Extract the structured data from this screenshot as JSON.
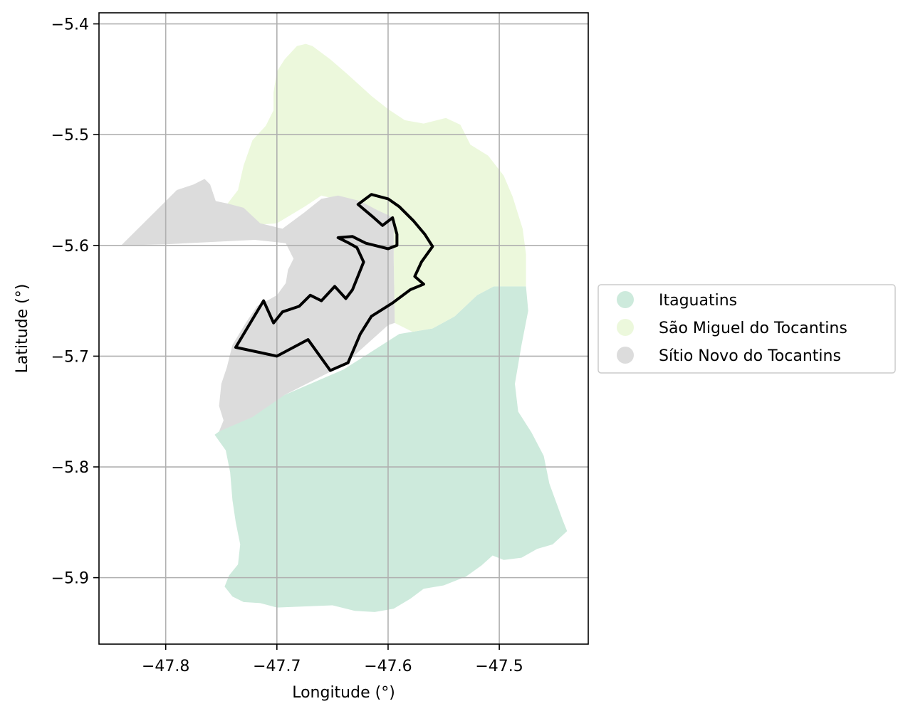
{
  "chart_data": {
    "type": "map",
    "xlabel": "Longitude (°)",
    "ylabel": "Latitude (°)",
    "xlim": [
      -47.86,
      -47.42
    ],
    "ylim": [
      -5.96,
      -5.39
    ],
    "grid": true,
    "x_ticks": [
      {
        "value": -47.8,
        "label": "−47.8"
      },
      {
        "value": -47.7,
        "label": "−47.7"
      },
      {
        "value": -47.6,
        "label": "−47.6"
      },
      {
        "value": -47.5,
        "label": "−47.5"
      }
    ],
    "y_ticks": [
      {
        "value": -5.4,
        "label": "−5.4"
      },
      {
        "value": -5.5,
        "label": "−5.5"
      },
      {
        "value": -5.6,
        "label": "−5.6"
      },
      {
        "value": -5.7,
        "label": "−5.7"
      },
      {
        "value": -5.8,
        "label": "−5.8"
      },
      {
        "value": -5.9,
        "label": "−5.9"
      }
    ],
    "legend_position": "right",
    "regions": [
      {
        "key": "itaguatins",
        "name": "Itaguatins",
        "color": "#cdeadc",
        "coords": [
          [
            -47.752,
            -5.768
          ],
          [
            -47.693,
            -5.735
          ],
          [
            -47.64,
            -5.712
          ],
          [
            -47.59,
            -5.68
          ],
          [
            -47.56,
            -5.675
          ],
          [
            -47.54,
            -5.664
          ],
          [
            -47.52,
            -5.645
          ],
          [
            -47.505,
            -5.637
          ],
          [
            -47.476,
            -5.637
          ],
          [
            -47.474,
            -5.659
          ],
          [
            -47.48,
            -5.69
          ],
          [
            -47.486,
            -5.725
          ],
          [
            -47.483,
            -5.75
          ],
          [
            -47.471,
            -5.769
          ],
          [
            -47.46,
            -5.79
          ],
          [
            -47.455,
            -5.815
          ],
          [
            -47.443,
            -5.848
          ],
          [
            -47.439,
            -5.858
          ],
          [
            -47.452,
            -5.87
          ],
          [
            -47.466,
            -5.874
          ],
          [
            -47.48,
            -5.882
          ],
          [
            -47.496,
            -5.884
          ],
          [
            -47.506,
            -5.88
          ],
          [
            -47.516,
            -5.889
          ],
          [
            -47.53,
            -5.899
          ],
          [
            -47.55,
            -5.907
          ],
          [
            -47.568,
            -5.91
          ],
          [
            -47.58,
            -5.919
          ],
          [
            -47.595,
            -5.928
          ],
          [
            -47.612,
            -5.931
          ],
          [
            -47.63,
            -5.93
          ],
          [
            -47.65,
            -5.925
          ],
          [
            -47.7,
            -5.927
          ],
          [
            -47.715,
            -5.923
          ],
          [
            -47.73,
            -5.922
          ],
          [
            -47.74,
            -5.917
          ],
          [
            -47.747,
            -5.908
          ],
          [
            -47.743,
            -5.898
          ],
          [
            -47.735,
            -5.888
          ],
          [
            -47.733,
            -5.87
          ],
          [
            -47.737,
            -5.85
          ],
          [
            -47.74,
            -5.83
          ],
          [
            -47.742,
            -5.805
          ],
          [
            -47.746,
            -5.785
          ],
          [
            -47.756,
            -5.771
          ]
        ]
      },
      {
        "key": "sao_miguel",
        "name": "São Miguel do Tocantins",
        "color": "#ecf8dc",
        "coords": [
          [
            -47.752,
            -5.574
          ],
          [
            -47.745,
            -5.563
          ],
          [
            -47.735,
            -5.55
          ],
          [
            -47.73,
            -5.528
          ],
          [
            -47.722,
            -5.505
          ],
          [
            -47.71,
            -5.492
          ],
          [
            -47.703,
            -5.478
          ],
          [
            -47.703,
            -5.462
          ],
          [
            -47.7,
            -5.443
          ],
          [
            -47.693,
            -5.432
          ],
          [
            -47.682,
            -5.42
          ],
          [
            -47.674,
            -5.418
          ],
          [
            -47.668,
            -5.42
          ],
          [
            -47.652,
            -5.432
          ],
          [
            -47.637,
            -5.445
          ],
          [
            -47.615,
            -5.465
          ],
          [
            -47.6,
            -5.477
          ],
          [
            -47.585,
            -5.487
          ],
          [
            -47.568,
            -5.49
          ],
          [
            -47.548,
            -5.485
          ],
          [
            -47.535,
            -5.491
          ],
          [
            -47.526,
            -5.509
          ],
          [
            -47.51,
            -5.519
          ],
          [
            -47.496,
            -5.537
          ],
          [
            -47.488,
            -5.556
          ],
          [
            -47.479,
            -5.585
          ],
          [
            -47.476,
            -5.608
          ],
          [
            -47.476,
            -5.637
          ],
          [
            -47.505,
            -5.637
          ],
          [
            -47.52,
            -5.645
          ],
          [
            -47.54,
            -5.664
          ],
          [
            -47.56,
            -5.675
          ],
          [
            -47.578,
            -5.678
          ],
          [
            -47.594,
            -5.67
          ],
          [
            -47.595,
            -5.612
          ],
          [
            -47.595,
            -5.575
          ],
          [
            -47.62,
            -5.568
          ],
          [
            -47.64,
            -5.56
          ],
          [
            -47.66,
            -5.555
          ],
          [
            -47.675,
            -5.565
          ],
          [
            -47.7,
            -5.58
          ],
          [
            -47.725,
            -5.582
          ],
          [
            -47.74,
            -5.58
          ]
        ]
      },
      {
        "key": "sitio_novo",
        "name": "Sítio Novo do Tocantins",
        "color": "#dcdcdc",
        "coords": [
          [
            -47.84,
            -5.6
          ],
          [
            -47.81,
            -5.57
          ],
          [
            -47.79,
            -5.55
          ],
          [
            -47.775,
            -5.545
          ],
          [
            -47.765,
            -5.54
          ],
          [
            -47.76,
            -5.545
          ],
          [
            -47.755,
            -5.56
          ],
          [
            -47.745,
            -5.562
          ],
          [
            -47.73,
            -5.566
          ],
          [
            -47.715,
            -5.58
          ],
          [
            -47.695,
            -5.585
          ],
          [
            -47.675,
            -5.57
          ],
          [
            -47.66,
            -5.558
          ],
          [
            -47.645,
            -5.555
          ],
          [
            -47.625,
            -5.56
          ],
          [
            -47.61,
            -5.568
          ],
          [
            -47.595,
            -5.575
          ],
          [
            -47.595,
            -5.612
          ],
          [
            -47.594,
            -5.67
          ],
          [
            -47.6,
            -5.672
          ],
          [
            -47.64,
            -5.708
          ],
          [
            -47.693,
            -5.735
          ],
          [
            -47.722,
            -5.755
          ],
          [
            -47.752,
            -5.768
          ],
          [
            -47.748,
            -5.758
          ],
          [
            -47.752,
            -5.745
          ],
          [
            -47.75,
            -5.725
          ],
          [
            -47.745,
            -5.71
          ],
          [
            -47.74,
            -5.69
          ],
          [
            -47.728,
            -5.67
          ],
          [
            -47.718,
            -5.655
          ],
          [
            -47.7,
            -5.645
          ],
          [
            -47.692,
            -5.634
          ],
          [
            -47.69,
            -5.622
          ],
          [
            -47.685,
            -5.612
          ],
          [
            -47.692,
            -5.598
          ],
          [
            -47.72,
            -5.595
          ],
          [
            -47.76,
            -5.597
          ],
          [
            -47.8,
            -5.599
          ]
        ]
      }
    ],
    "outline": {
      "color": "#000000",
      "coords": [
        [
          -47.737,
          -5.692
        ],
        [
          -47.712,
          -5.65
        ],
        [
          -47.703,
          -5.67
        ],
        [
          -47.695,
          -5.66
        ],
        [
          -47.68,
          -5.655
        ],
        [
          -47.67,
          -5.645
        ],
        [
          -47.66,
          -5.65
        ],
        [
          -47.648,
          -5.637
        ],
        [
          -47.638,
          -5.648
        ],
        [
          -47.632,
          -5.64
        ],
        [
          -47.622,
          -5.615
        ],
        [
          -47.628,
          -5.602
        ],
        [
          -47.635,
          -5.598
        ],
        [
          -47.645,
          -5.593
        ],
        [
          -47.632,
          -5.592
        ],
        [
          -47.62,
          -5.598
        ],
        [
          -47.612,
          -5.6
        ],
        [
          -47.6,
          -5.603
        ],
        [
          -47.592,
          -5.6
        ],
        [
          -47.592,
          -5.59
        ],
        [
          -47.596,
          -5.575
        ],
        [
          -47.605,
          -5.582
        ],
        [
          -47.614,
          -5.574
        ],
        [
          -47.627,
          -5.563
        ],
        [
          -47.615,
          -5.554
        ],
        [
          -47.6,
          -5.558
        ],
        [
          -47.59,
          -5.565
        ],
        [
          -47.577,
          -5.578
        ],
        [
          -47.567,
          -5.59
        ],
        [
          -47.56,
          -5.601
        ],
        [
          -47.57,
          -5.615
        ],
        [
          -47.576,
          -5.628
        ],
        [
          -47.568,
          -5.635
        ],
        [
          -47.58,
          -5.64
        ],
        [
          -47.596,
          -5.652
        ],
        [
          -47.615,
          -5.664
        ],
        [
          -47.625,
          -5.68
        ],
        [
          -47.636,
          -5.706
        ],
        [
          -47.652,
          -5.713
        ],
        [
          -47.672,
          -5.685
        ],
        [
          -47.7,
          -5.7
        ],
        [
          -47.737,
          -5.692
        ]
      ]
    }
  }
}
